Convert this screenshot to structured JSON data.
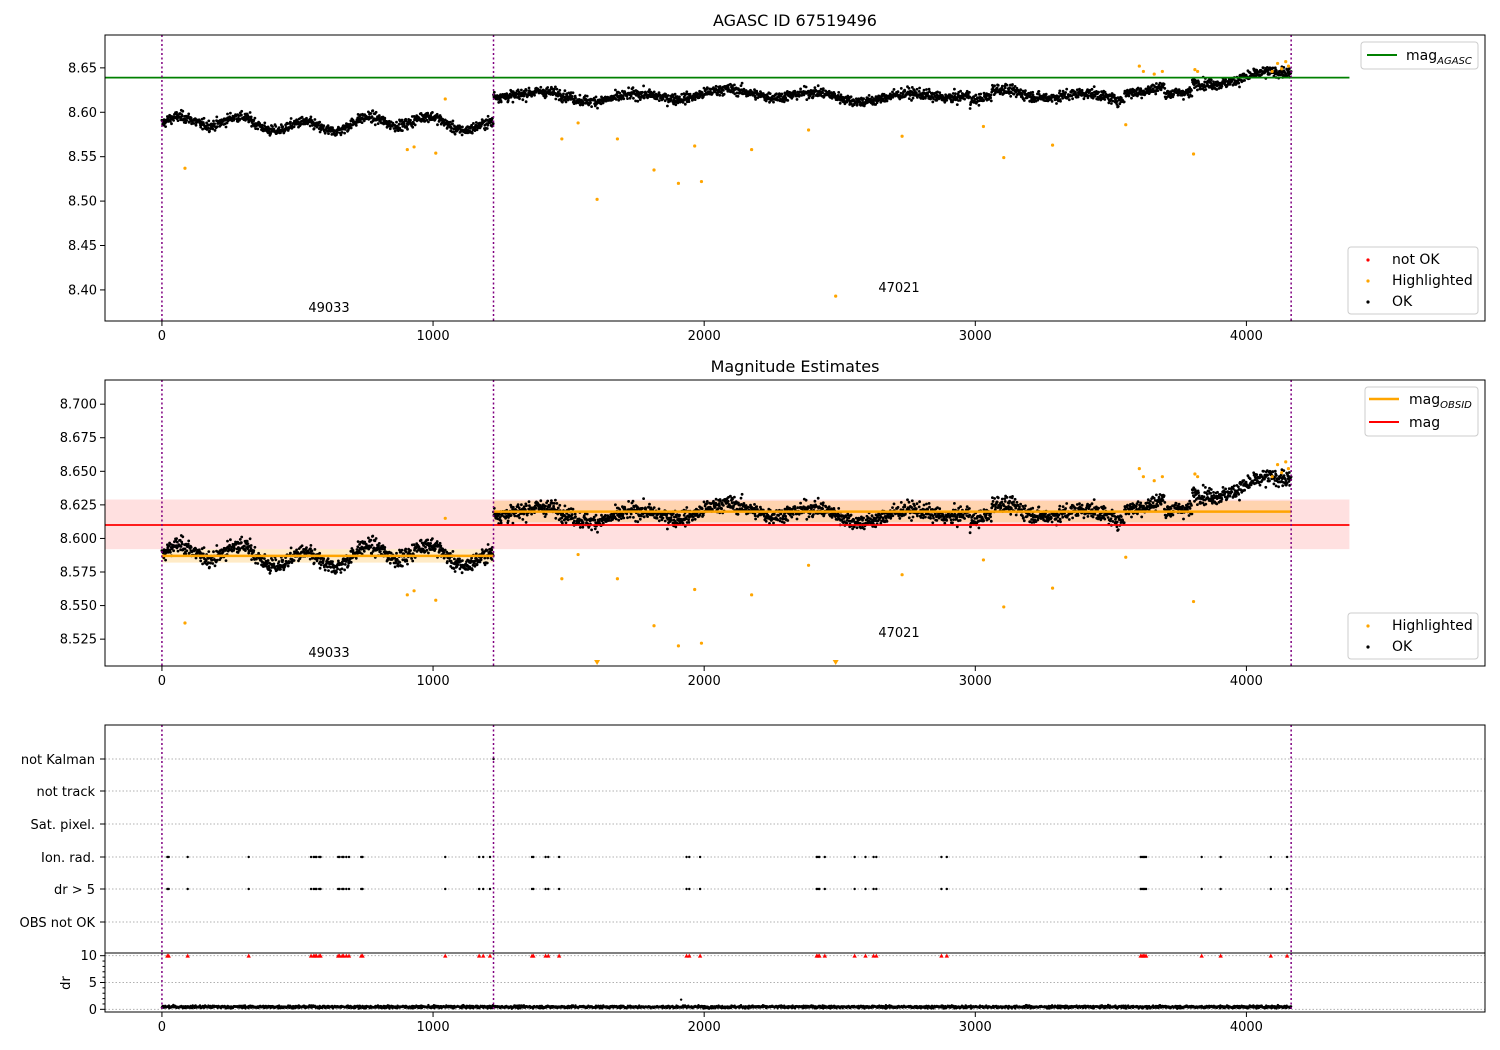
{
  "figure": {
    "agasc_id": "AGASC ID 67519496"
  },
  "chart_data": [
    {
      "type": "scatter",
      "title": "AGASC ID 67519496",
      "xlabel": "",
      "ylabel": "",
      "xlim": [
        -210,
        4880
      ],
      "ylim": [
        8.365,
        8.687
      ],
      "xticks": [
        0,
        1000,
        2000,
        3000,
        4000
      ],
      "yticks": [
        8.4,
        8.45,
        8.5,
        8.55,
        8.6,
        8.65
      ],
      "grid": false,
      "reference_lines": [
        {
          "name": "mag_AGASC",
          "y": 8.639,
          "x_range": [
            -210,
            4380
          ],
          "color": "#008000"
        }
      ],
      "obsid_boundaries": [
        0,
        1223,
        4165
      ],
      "obsid_labels": [
        {
          "text": "49033",
          "x": 610,
          "y": 8.372
        },
        {
          "text": "47021",
          "x": 2700,
          "y": 8.395
        }
      ],
      "segments": [
        {
          "x_range": [
            0,
            1223
          ],
          "mean": 8.587,
          "spread": 0.009
        },
        {
          "x_range": [
            1223,
            4165
          ],
          "mean": 8.62,
          "spread": 0.009
        }
      ],
      "series": [
        {
          "name": "not OK",
          "color": "#ff0000",
          "values": []
        },
        {
          "name": "Highlighted",
          "color": "#ffa500",
          "x": [
            85,
            905,
            930,
            1010,
            1045,
            1475,
            1535,
            1605,
            1680,
            1815,
            1905,
            1965,
            1990,
            2175,
            2385,
            2485,
            2730,
            3030,
            3105,
            3285,
            3555,
            3605,
            3620,
            3660,
            3690,
            3805,
            3810,
            3820,
            4095,
            4115,
            4130,
            4145,
            4155
          ],
          "y": [
            8.537,
            8.558,
            8.561,
            8.554,
            8.615,
            8.57,
            8.588,
            8.502,
            8.57,
            8.535,
            8.52,
            8.562,
            8.522,
            8.558,
            8.58,
            8.393,
            8.573,
            8.584,
            8.549,
            8.563,
            8.586,
            8.652,
            8.646,
            8.643,
            8.646,
            8.553,
            8.648,
            8.646,
            8.646,
            8.655,
            8.649,
            8.657,
            8.652
          ]
        },
        {
          "name": "OK",
          "color": "#000000",
          "values": "dense continuous light curve of about 3000 observations: ~8.587 for x 0-1223, ~8.620 for x 1223-4165, rising to ~8.645 near x 4150"
        }
      ],
      "legends": [
        {
          "placement": "top-right",
          "entries": [
            "mag_AGASC"
          ]
        },
        {
          "placement": "lower-right",
          "entries": [
            "not OK",
            "Highlighted",
            "OK"
          ]
        }
      ]
    },
    {
      "type": "scatter",
      "title": "Magnitude Estimates",
      "xlabel": "",
      "ylabel": "",
      "xlim": [
        -210,
        4880
      ],
      "ylim": [
        8.505,
        8.718
      ],
      "xticks": [
        0,
        1000,
        2000,
        3000,
        4000
      ],
      "yticks": [
        8.525,
        8.55,
        8.575,
        8.6,
        8.625,
        8.65,
        8.675,
        8.7
      ],
      "grid": false,
      "reference_lines": [
        {
          "name": "mag",
          "y": 8.61,
          "x_range": [
            -210,
            4380
          ],
          "color": "#ff0000",
          "band": [
            8.592,
            8.629
          ]
        },
        {
          "name": "mag_OBSID",
          "color": "#ffa500",
          "segments": [
            {
              "x_range": [
                0,
                1223
              ],
              "y": 8.587,
              "band": [
                8.582,
                8.592
              ]
            },
            {
              "x_range": [
                1223,
                4165
              ],
              "y": 8.62,
              "band": [
                8.612,
                8.628
              ]
            }
          ]
        }
      ],
      "obsid_boundaries": [
        0,
        1223,
        4165
      ],
      "obsid_labels": [
        {
          "text": "49033",
          "x": 610,
          "y": 8.512
        },
        {
          "text": "47021",
          "x": 2700,
          "y": 8.526
        }
      ],
      "series": [
        {
          "name": "Highlighted",
          "color": "#ffa500",
          "x": [
            85,
            905,
            930,
            1010,
            1045,
            1475,
            1535,
            1680,
            1815,
            1905,
            1965,
            1990,
            2175,
            2385,
            2730,
            3030,
            3105,
            3285,
            3555,
            3605,
            3620,
            3660,
            3690,
            3805,
            3810,
            3820,
            4095,
            4115,
            4130,
            4145,
            4155
          ],
          "y": [
            8.537,
            8.558,
            8.561,
            8.554,
            8.615,
            8.57,
            8.588,
            8.57,
            8.535,
            8.52,
            8.562,
            8.522,
            8.558,
            8.58,
            8.573,
            8.584,
            8.549,
            8.563,
            8.586,
            8.652,
            8.646,
            8.643,
            8.646,
            8.553,
            8.648,
            8.646,
            8.646,
            8.655,
            8.649,
            8.657,
            8.652
          ]
        },
        {
          "name": "Highlighted (below range)",
          "color": "#ffa500",
          "marker": "triangle-down",
          "x": [
            1605,
            2485
          ]
        },
        {
          "name": "OK",
          "color": "#000000",
          "values": "same light curve as the upper panel"
        }
      ],
      "legends": [
        {
          "placement": "top-right",
          "entries": [
            "mag_OBSID",
            "mag"
          ]
        },
        {
          "placement": "lower-right",
          "entries": [
            "Highlighted",
            "OK"
          ]
        }
      ]
    },
    {
      "type": "scatter",
      "title": "",
      "xlabel": "",
      "ylabel": "",
      "xlim": [
        -210,
        4880
      ],
      "categories": [
        "not Kalman",
        "not track",
        "Sat. pixel.",
        "Ion. rad.",
        "dr > 5",
        "OBS not OK"
      ],
      "flags": {
        "not Kalman": [
          1223
        ],
        "not track": [],
        "Sat. pixel.": [],
        "Ion. rad.": [
          20,
          25,
          95,
          320,
          550,
          560,
          565,
          570,
          580,
          585,
          650,
          655,
          665,
          670,
          680,
          690,
          735,
          740,
          1045,
          1170,
          1185,
          1210,
          1365,
          1370,
          1415,
          1425,
          1465,
          1935,
          1945,
          1985,
          2415,
          2420,
          2425,
          2445,
          2555,
          2595,
          2625,
          2635,
          2875,
          2895,
          3610,
          3615,
          3620,
          3625,
          3630,
          3835,
          3905,
          4090,
          4150
        ],
        "dr > 5": [
          20,
          25,
          95,
          320,
          550,
          560,
          565,
          570,
          580,
          585,
          650,
          655,
          665,
          670,
          680,
          690,
          735,
          740,
          1045,
          1170,
          1185,
          1210,
          1365,
          1370,
          1415,
          1425,
          1465,
          1935,
          1945,
          1985,
          2415,
          2420,
          2425,
          2445,
          2555,
          2595,
          2625,
          2635,
          2875,
          2895,
          3610,
          3615,
          3620,
          3625,
          3630,
          3835,
          3905,
          4090,
          4150
        ],
        "OBS not OK": []
      },
      "grid": true,
      "obsid_boundaries": [
        0,
        1223,
        4165
      ]
    },
    {
      "type": "scatter",
      "title": "",
      "xlabel": "",
      "ylabel": "dr",
      "xlim": [
        -210,
        4880
      ],
      "ylim": [
        -0.5,
        10.5
      ],
      "xticks": [
        0,
        1000,
        2000,
        3000,
        4000
      ],
      "yticks": [
        0,
        5,
        10
      ],
      "grid": true,
      "obsid_boundaries": [
        0,
        1223,
        4165
      ],
      "series": [
        {
          "name": "dr",
          "color": "#000000",
          "values": "dense points between ~0.1 and ~1.0 for every observation, one outlier ~1.8 near x 1915"
        },
        {
          "name": "dr > 10 (clipped)",
          "color": "#ff0000",
          "marker": "triangle-up",
          "value": 10,
          "x": [
            20,
            25,
            95,
            320,
            550,
            560,
            565,
            570,
            580,
            585,
            650,
            655,
            665,
            670,
            680,
            690,
            735,
            740,
            1045,
            1170,
            1185,
            1210,
            1365,
            1370,
            1415,
            1425,
            1465,
            1935,
            1945,
            1985,
            2415,
            2420,
            2425,
            2445,
            2555,
            2595,
            2625,
            2635,
            2875,
            2895,
            3610,
            3615,
            3620,
            3625,
            3630,
            3835,
            3905,
            4090,
            4150
          ]
        }
      ]
    }
  ]
}
